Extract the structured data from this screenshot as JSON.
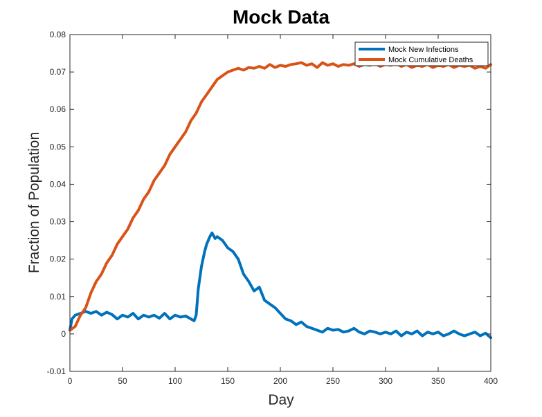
{
  "chart_data": {
    "type": "line",
    "title": "Mock Data",
    "xlabel": "Day",
    "ylabel": "Fraction of Population",
    "xlim": [
      0,
      400
    ],
    "ylim": [
      -0.01,
      0.08
    ],
    "xticks": [
      0,
      50,
      100,
      150,
      200,
      250,
      300,
      350,
      400
    ],
    "yticks": [
      -0.01,
      0,
      0.01,
      0.02,
      0.03,
      0.04,
      0.05,
      0.06,
      0.07,
      0.08
    ],
    "xtick_labels": [
      "0",
      "50",
      "100",
      "150",
      "200",
      "250",
      "300",
      "350",
      "400"
    ],
    "ytick_labels": [
      "-0.01",
      "0",
      "0.01",
      "0.02",
      "0.03",
      "0.04",
      "0.05",
      "0.06",
      "0.07",
      "0.08"
    ],
    "grid": false,
    "legend_position": "top-right",
    "series": [
      {
        "name": "Mock New Infections",
        "color": "#0072BD",
        "x": [
          0,
          2,
          5,
          10,
          15,
          20,
          25,
          30,
          35,
          40,
          45,
          50,
          55,
          60,
          65,
          70,
          75,
          80,
          85,
          90,
          95,
          100,
          105,
          110,
          115,
          118,
          120,
          122,
          125,
          128,
          130,
          133,
          135,
          138,
          140,
          145,
          150,
          155,
          160,
          165,
          170,
          175,
          180,
          185,
          190,
          195,
          200,
          205,
          210,
          215,
          220,
          225,
          230,
          235,
          240,
          245,
          250,
          255,
          260,
          265,
          270,
          275,
          280,
          285,
          290,
          295,
          300,
          305,
          310,
          315,
          320,
          325,
          330,
          335,
          340,
          345,
          350,
          355,
          360,
          365,
          370,
          375,
          380,
          385,
          390,
          395,
          400
        ],
        "y": [
          0.001,
          0.004,
          0.005,
          0.0055,
          0.006,
          0.0055,
          0.006,
          0.005,
          0.0058,
          0.0052,
          0.004,
          0.005,
          0.0045,
          0.0055,
          0.004,
          0.005,
          0.0045,
          0.005,
          0.0042,
          0.0055,
          0.004,
          0.005,
          0.0045,
          0.0048,
          0.004,
          0.0035,
          0.005,
          0.012,
          0.018,
          0.022,
          0.024,
          0.026,
          0.027,
          0.0255,
          0.026,
          0.025,
          0.023,
          0.022,
          0.02,
          0.016,
          0.014,
          0.0115,
          0.0125,
          0.009,
          0.008,
          0.007,
          0.0055,
          0.004,
          0.0035,
          0.0025,
          0.0032,
          0.002,
          0.0015,
          0.001,
          0.0005,
          0.0015,
          0.001,
          0.0012,
          0.0005,
          0.0008,
          0.0015,
          0.0005,
          0.0,
          0.0008,
          0.0005,
          0.0,
          0.0005,
          0.0,
          0.0008,
          -0.0005,
          0.0005,
          0.0,
          0.0008,
          -0.0005,
          0.0005,
          0.0,
          0.0005,
          -0.0005,
          0.0,
          0.0008,
          0.0,
          -0.0005,
          0.0,
          0.0005,
          -0.0005,
          0.0002,
          -0.001
        ]
      },
      {
        "name": "Mock Cumulative Deaths",
        "color": "#D95319",
        "x": [
          0,
          5,
          10,
          15,
          20,
          25,
          30,
          35,
          40,
          45,
          50,
          55,
          60,
          65,
          70,
          75,
          80,
          85,
          90,
          95,
          100,
          105,
          110,
          115,
          120,
          125,
          130,
          135,
          140,
          145,
          150,
          155,
          160,
          165,
          170,
          175,
          180,
          185,
          190,
          195,
          200,
          205,
          210,
          215,
          220,
          225,
          230,
          235,
          240,
          245,
          250,
          255,
          260,
          265,
          270,
          275,
          280,
          285,
          290,
          295,
          300,
          305,
          310,
          315,
          320,
          325,
          330,
          335,
          340,
          345,
          350,
          355,
          360,
          365,
          370,
          375,
          380,
          385,
          390,
          395,
          400
        ],
        "y": [
          0.001,
          0.002,
          0.005,
          0.007,
          0.011,
          0.014,
          0.016,
          0.019,
          0.021,
          0.024,
          0.026,
          0.028,
          0.031,
          0.033,
          0.036,
          0.038,
          0.041,
          0.043,
          0.045,
          0.048,
          0.05,
          0.052,
          0.054,
          0.057,
          0.059,
          0.062,
          0.064,
          0.066,
          0.068,
          0.069,
          0.07,
          0.0705,
          0.071,
          0.0705,
          0.0712,
          0.071,
          0.0715,
          0.071,
          0.072,
          0.0712,
          0.0718,
          0.0715,
          0.072,
          0.0722,
          0.0725,
          0.0718,
          0.0722,
          0.0712,
          0.0725,
          0.0718,
          0.0722,
          0.0715,
          0.072,
          0.0718,
          0.0722,
          0.0715,
          0.072,
          0.0718,
          0.0722,
          0.0715,
          0.072,
          0.0718,
          0.0722,
          0.0715,
          0.072,
          0.0712,
          0.0718,
          0.0715,
          0.072,
          0.0712,
          0.0718,
          0.0715,
          0.072,
          0.0712,
          0.0718,
          0.0715,
          0.0718,
          0.071,
          0.0715,
          0.071,
          0.072
        ]
      }
    ]
  }
}
